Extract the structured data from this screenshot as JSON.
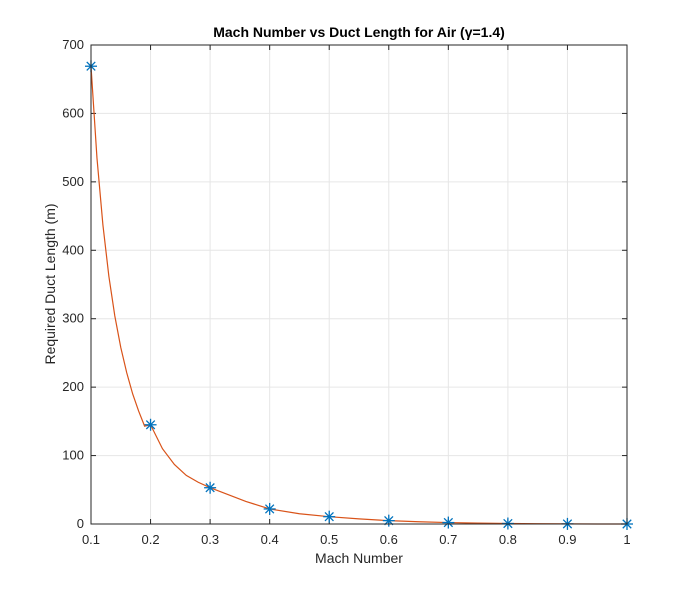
{
  "chart_data": {
    "type": "line",
    "title": "Mach Number vs Duct Length for Air (γ=1.4)",
    "xlabel": "Mach Number",
    "ylabel": "Required Duct Length (m)",
    "xlim": [
      0.1,
      1
    ],
    "ylim": [
      0,
      700
    ],
    "xticks": [
      0.1,
      0.2,
      0.3,
      0.4,
      0.5,
      0.6,
      0.7,
      0.8,
      0.9,
      1
    ],
    "xtick_labels": [
      "0.1",
      "0.2",
      "0.3",
      "0.4",
      "0.5",
      "0.6",
      "0.7",
      "0.8",
      "0.9",
      "1"
    ],
    "yticks": [
      0,
      100,
      200,
      300,
      400,
      500,
      600,
      700
    ],
    "ytick_labels": [
      "0",
      "100",
      "200",
      "300",
      "400",
      "500",
      "600",
      "700"
    ],
    "grid": true,
    "series": [
      {
        "marker": "asterisk",
        "color": "#0072BD",
        "x": [
          0.1,
          0.2,
          0.3,
          0.4,
          0.5,
          0.6,
          0.7,
          0.8,
          0.9,
          1.0
        ],
        "y": [
          669,
          145,
          53,
          22,
          10.7,
          4.9,
          2.1,
          0.7,
          0.15,
          0
        ]
      },
      {
        "line": "solid",
        "color": "#D95319",
        "x": [
          0.1,
          0.11,
          0.12,
          0.13,
          0.14,
          0.15,
          0.16,
          0.17,
          0.18,
          0.19,
          0.2,
          0.22,
          0.24,
          0.26,
          0.28,
          0.3,
          0.33,
          0.36,
          0.4,
          0.45,
          0.5,
          0.55,
          0.6,
          0.65,
          0.7,
          0.75,
          0.8,
          0.85,
          0.9,
          0.95,
          1.0
        ],
        "y": [
          669,
          535,
          437,
          362,
          304,
          258,
          221,
          190,
          165,
          143,
          145,
          110,
          87,
          71,
          61,
          53,
          43,
          33,
          22,
          15,
          10.7,
          7.5,
          4.9,
          3.3,
          2.1,
          1.3,
          0.7,
          0.35,
          0.15,
          0.05,
          0
        ]
      }
    ]
  }
}
